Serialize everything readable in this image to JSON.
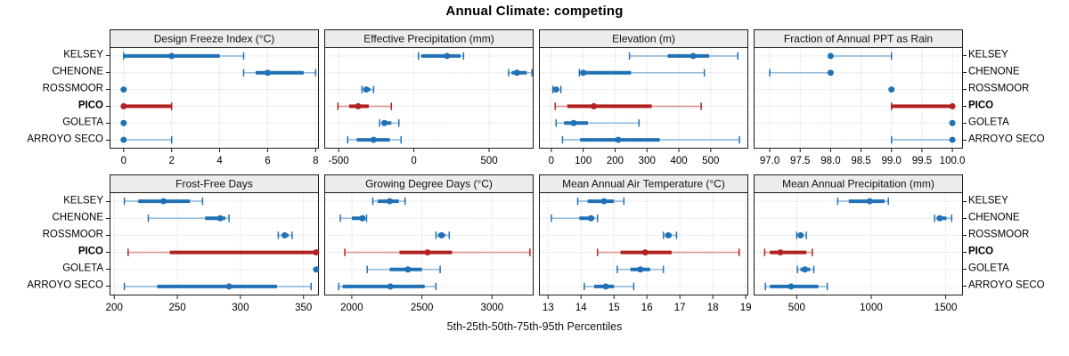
{
  "title": "Annual Climate: competing",
  "caption": "5th-25th-50th-75th-95th Percentiles",
  "colors": {
    "blue": "#2171b5",
    "blue_light": "#8fb9dc",
    "red": "#b22222",
    "red_light": "#d89790",
    "strip_bg": "#ececec",
    "panel_border": "#1a1a1a",
    "grid": "#c9c9c9",
    "text": "#111111"
  },
  "sites": [
    {
      "name": "KELSEY",
      "highlight": false
    },
    {
      "name": "CHENONE",
      "highlight": false
    },
    {
      "name": "ROSSMOOR",
      "highlight": false
    },
    {
      "name": "PICO",
      "highlight": true
    },
    {
      "name": "GOLETA",
      "highlight": false
    },
    {
      "name": "ARROYO SECO",
      "highlight": false
    }
  ],
  "chart_data": {
    "type": "dot-whisker-trellis",
    "rows": 2,
    "cols": 4,
    "percentiles": [
      "5th",
      "25th",
      "50th",
      "75th",
      "95th"
    ],
    "panels": [
      {
        "label": "Design Freeze Index (°C)",
        "slug": "design-freeze-index",
        "row": 0,
        "col": 0,
        "axis": {
          "min": -0.55,
          "max": 8.1,
          "ticks": [
            0,
            2,
            4,
            6,
            8
          ],
          "tick_labels": [
            "0",
            "2",
            "4",
            "6",
            "8"
          ]
        },
        "series": [
          [
            0,
            0,
            2,
            4,
            5
          ],
          [
            5,
            5.5,
            6,
            7.5,
            8
          ],
          [
            0,
            0,
            0,
            0,
            0
          ],
          [
            0,
            0,
            0,
            2,
            2
          ],
          [
            0,
            0,
            0,
            0,
            0
          ],
          [
            0,
            0,
            0,
            0,
            2
          ]
        ]
      },
      {
        "label": "Effective Precipitation (mm)",
        "slug": "effective-precipitation",
        "row": 0,
        "col": 1,
        "axis": {
          "min": -590,
          "max": 790,
          "ticks": [
            -500,
            0,
            500
          ],
          "tick_labels": [
            "-500",
            "0",
            "500"
          ]
        },
        "series": [
          [
            30,
            50,
            220,
            310,
            330
          ],
          [
            630,
            650,
            685,
            750,
            785
          ],
          [
            -345,
            -335,
            -317,
            -290,
            -268
          ],
          [
            -505,
            -430,
            -370,
            -300,
            -150
          ],
          [
            -228,
            -213,
            -196,
            -150,
            -100
          ],
          [
            -440,
            -380,
            -268,
            -160,
            -85
          ]
        ]
      },
      {
        "label": "Elevation (m)",
        "slug": "elevation",
        "row": 0,
        "col": 2,
        "axis": {
          "min": -36,
          "max": 615,
          "ticks": [
            0,
            100,
            200,
            300,
            400,
            500
          ],
          "tick_labels": [
            "0",
            "100",
            "200",
            "300",
            "400",
            "500"
          ]
        },
        "series": [
          [
            245,
            365,
            445,
            495,
            585
          ],
          [
            88,
            95,
            100,
            250,
            480
          ],
          [
            5,
            10,
            15,
            22,
            30
          ],
          [
            12,
            50,
            133,
            315,
            470
          ],
          [
            15,
            40,
            70,
            115,
            275
          ],
          [
            35,
            90,
            210,
            340,
            590
          ]
        ]
      },
      {
        "label": "Fraction of Annual PPT as Rain",
        "slug": "fraction-of-annual-ppt-as-rain",
        "row": 0,
        "col": 3,
        "axis": {
          "min": 96.75,
          "max": 100.16,
          "ticks": [
            97.0,
            97.5,
            98.0,
            98.5,
            99.0,
            99.5,
            100.0
          ],
          "tick_labels": [
            "97.0",
            "97.5",
            "98.0",
            "98.5",
            "99.0",
            "99.5",
            "100.0"
          ]
        },
        "series": [
          [
            98,
            98,
            98,
            98,
            99
          ],
          [
            97,
            98,
            98,
            98,
            98
          ],
          [
            99,
            99,
            99,
            99,
            99
          ],
          [
            99,
            99,
            100,
            100,
            100
          ],
          [
            100,
            100,
            100,
            100,
            100
          ],
          [
            99,
            100,
            100,
            100,
            100
          ]
        ]
      },
      {
        "label": "Frost-Free Days",
        "slug": "frost-free-days",
        "row": 1,
        "col": 0,
        "axis": {
          "min": 197,
          "max": 361.5,
          "ticks": [
            200,
            250,
            300,
            350
          ],
          "tick_labels": [
            "200",
            "250",
            "300",
            "350"
          ]
        },
        "series": [
          [
            208,
            219,
            239,
            260,
            270
          ],
          [
            227,
            272,
            284,
            288,
            291
          ],
          [
            330,
            333,
            335,
            338,
            341
          ],
          [
            211,
            244,
            360,
            360,
            360
          ],
          [
            360,
            360,
            360,
            360,
            360
          ],
          [
            208,
            234,
            291,
            329,
            356
          ]
        ]
      },
      {
        "label": "Growing Degree Days (°C)",
        "slug": "growing-degree-days",
        "row": 1,
        "col": 1,
        "axis": {
          "min": 1810,
          "max": 3290,
          "ticks": [
            2000,
            2500,
            3000
          ],
          "tick_labels": [
            "2000",
            "2500",
            "3000"
          ]
        },
        "series": [
          [
            2150,
            2185,
            2270,
            2335,
            2380
          ],
          [
            1918,
            2000,
            2076,
            2093,
            2105
          ],
          [
            2600,
            2615,
            2640,
            2665,
            2695
          ],
          [
            1950,
            2340,
            2540,
            2715,
            3270
          ],
          [
            2110,
            2270,
            2400,
            2500,
            2630
          ],
          [
            1907,
            1935,
            2275,
            2520,
            2600
          ]
        ]
      },
      {
        "label": "Mean Annual Air Temperature (°C)",
        "slug": "mean-annual-air-temperature",
        "row": 1,
        "col": 2,
        "axis": {
          "min": 12.75,
          "max": 19.05,
          "ticks": [
            13,
            14,
            15,
            16,
            17,
            18,
            19
          ],
          "tick_labels": [
            "13",
            "14",
            "15",
            "16",
            "17",
            "18",
            "19"
          ]
        },
        "series": [
          [
            13.9,
            14.2,
            14.7,
            15.0,
            15.3
          ],
          [
            13.1,
            13.95,
            14.3,
            14.4,
            14.5
          ],
          [
            16.5,
            16.55,
            16.65,
            16.75,
            16.9
          ],
          [
            14.5,
            15.2,
            15.95,
            16.75,
            18.8
          ],
          [
            15.1,
            15.5,
            15.8,
            16.1,
            16.5
          ],
          [
            14.1,
            14.4,
            14.75,
            15.0,
            15.6
          ]
        ]
      },
      {
        "label": "Mean Annual Precipitation (mm)",
        "slug": "mean-annual-precipitation",
        "row": 1,
        "col": 3,
        "axis": {
          "min": 217,
          "max": 1610,
          "ticks": [
            500,
            1000,
            1500
          ],
          "tick_labels": [
            "500",
            "1000",
            "1500"
          ]
        },
        "series": [
          [
            775,
            850,
            990,
            1090,
            1115
          ],
          [
            1425,
            1440,
            1460,
            1505,
            1540
          ],
          [
            500,
            512,
            526,
            545,
            565
          ],
          [
            285,
            320,
            390,
            565,
            605
          ],
          [
            505,
            525,
            555,
            590,
            615
          ],
          [
            290,
            320,
            462,
            645,
            705
          ]
        ]
      }
    ]
  }
}
